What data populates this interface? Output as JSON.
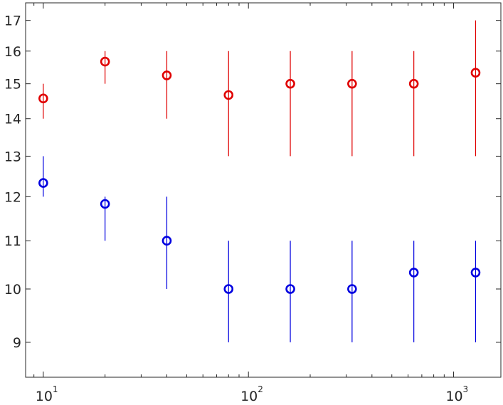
{
  "chart_data": {
    "type": "scatter",
    "title": "",
    "xlabel": "",
    "ylabel": "",
    "xscale": "log",
    "yscale": "log",
    "xlim": [
      8.2,
      1700
    ],
    "ylim": [
      8.4,
      17.6
    ],
    "grid": false,
    "legend": "none",
    "x_ticks": [
      {
        "value": 10,
        "base": "10",
        "exp": "1"
      },
      {
        "value": 100,
        "base": "10",
        "exp": "2"
      },
      {
        "value": 1000,
        "base": "10",
        "exp": "3"
      }
    ],
    "y_ticks": [
      {
        "value": 9,
        "label": "9"
      },
      {
        "value": 10,
        "label": "10"
      },
      {
        "value": 11,
        "label": "11"
      },
      {
        "value": 12,
        "label": "12"
      },
      {
        "value": 13,
        "label": "13"
      },
      {
        "value": 14,
        "label": "14"
      },
      {
        "value": 15,
        "label": "15"
      },
      {
        "value": 16,
        "label": "16"
      },
      {
        "value": 17,
        "label": "17"
      }
    ],
    "series": [
      {
        "color": "#e00000",
        "x": [
          10,
          20,
          40,
          80,
          160,
          320,
          640,
          1280
        ],
        "y": [
          14.57,
          15.67,
          15.25,
          14.67,
          15.0,
          15.0,
          15.0,
          15.33
        ],
        "low": [
          14,
          15,
          14,
          13,
          13,
          13,
          13,
          13
        ],
        "high": [
          15,
          16,
          16,
          16,
          16,
          16,
          16,
          17
        ]
      },
      {
        "color": "#0000e0",
        "x": [
          10,
          20,
          40,
          80,
          160,
          320,
          640,
          1280
        ],
        "y": [
          12.33,
          11.83,
          11.0,
          10.0,
          10.0,
          10.0,
          10.33,
          10.33
        ],
        "low": [
          12,
          11,
          10,
          9,
          9,
          9,
          9,
          9
        ],
        "high": [
          13,
          12,
          12,
          11,
          11,
          11,
          11,
          11
        ]
      }
    ]
  }
}
